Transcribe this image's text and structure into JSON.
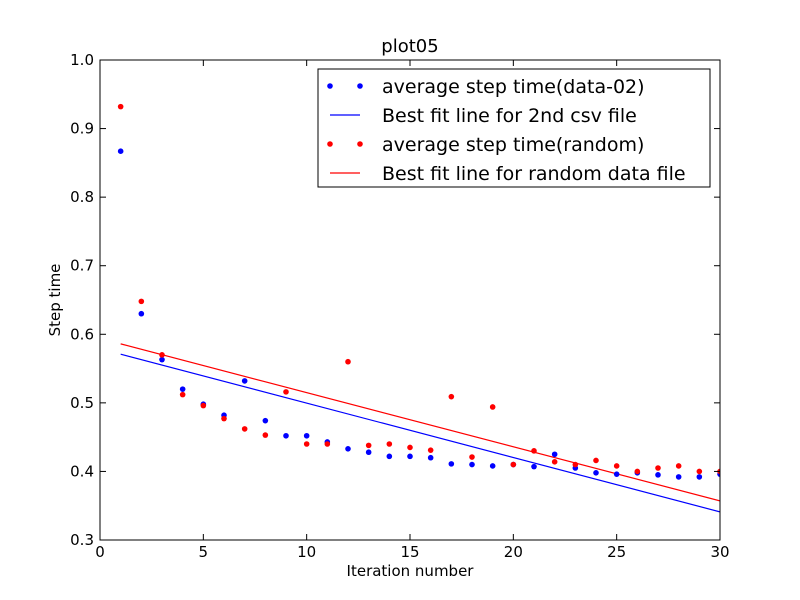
{
  "chart_data": {
    "type": "scatter",
    "title": "plot05",
    "xlabel": "Iteration number",
    "ylabel": "Step time",
    "xlim": [
      0,
      30
    ],
    "ylim": [
      0.3,
      1.0
    ],
    "xticks": [
      "0",
      "5",
      "10",
      "15",
      "20",
      "25",
      "30"
    ],
    "yticks": [
      "0.3",
      "0.4",
      "0.5",
      "0.6",
      "0.7",
      "0.8",
      "0.9",
      "1.0"
    ],
    "grid": false,
    "legend_position": "top-right",
    "series": [
      {
        "name": "average step time(data-02)",
        "kind": "points",
        "color": "#0000ff",
        "x": [
          1,
          2,
          3,
          4,
          5,
          6,
          7,
          8,
          9,
          10,
          11,
          12,
          13,
          14,
          15,
          16,
          17,
          18,
          19,
          20,
          21,
          22,
          23,
          24,
          25,
          26,
          27,
          28,
          29,
          30
        ],
        "y": [
          0.867,
          0.63,
          0.563,
          0.52,
          0.498,
          0.482,
          0.532,
          0.474,
          0.452,
          0.452,
          0.443,
          0.433,
          0.428,
          0.422,
          0.422,
          0.42,
          0.411,
          0.41,
          0.408,
          0.41,
          0.407,
          0.425,
          0.405,
          0.398,
          0.396,
          0.398,
          0.395,
          0.392,
          0.392,
          0.396
        ]
      },
      {
        "name": "Best fit line for 2nd csv file",
        "kind": "line",
        "color": "#0000ff",
        "x": [
          1,
          30
        ],
        "y": [
          0.571,
          0.341
        ]
      },
      {
        "name": "average step time(random)",
        "kind": "points",
        "color": "#ff0000",
        "x": [
          1,
          2,
          3,
          4,
          5,
          6,
          7,
          8,
          9,
          10,
          11,
          12,
          13,
          14,
          15,
          16,
          17,
          18,
          19,
          20,
          21,
          22,
          23,
          24,
          25,
          26,
          27,
          28,
          29,
          30
        ],
        "y": [
          0.932,
          0.648,
          0.57,
          0.512,
          0.496,
          0.477,
          0.462,
          0.453,
          0.516,
          0.44,
          0.44,
          0.56,
          0.438,
          0.44,
          0.435,
          0.431,
          0.509,
          0.421,
          0.494,
          0.41,
          0.43,
          0.414,
          0.41,
          0.416,
          0.408,
          0.4,
          0.405,
          0.408,
          0.4,
          0.4
        ]
      },
      {
        "name": "Best fit line for random data file",
        "kind": "line",
        "color": "#ff0000",
        "x": [
          1,
          30
        ],
        "y": [
          0.586,
          0.357
        ]
      }
    ]
  }
}
